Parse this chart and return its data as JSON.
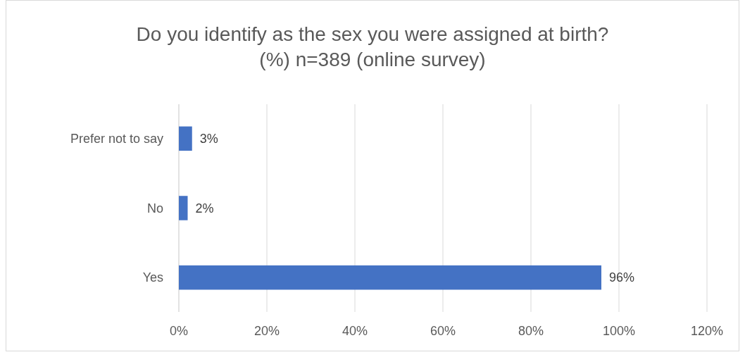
{
  "chart_data": {
    "type": "bar",
    "orientation": "horizontal",
    "title": "Do you identify as the sex you were assigned at birth?\n(%) n=389 (online survey)",
    "categories": [
      "Prefer not to say",
      "No",
      "Yes"
    ],
    "values": [
      3,
      2,
      96
    ],
    "color": "#4472c4",
    "value_labels": [
      "3%",
      "2%",
      "96%"
    ],
    "xlim": [
      0,
      120
    ],
    "xticks": [
      {
        "value": 0,
        "label": "0%"
      },
      {
        "value": 20,
        "label": "20%"
      },
      {
        "value": 40,
        "label": "40%"
      },
      {
        "value": 60,
        "label": "60%"
      },
      {
        "value": 80,
        "label": "80%"
      },
      {
        "value": 100,
        "label": "100%"
      },
      {
        "value": 120,
        "label": "120%"
      }
    ],
    "grid": "x"
  }
}
